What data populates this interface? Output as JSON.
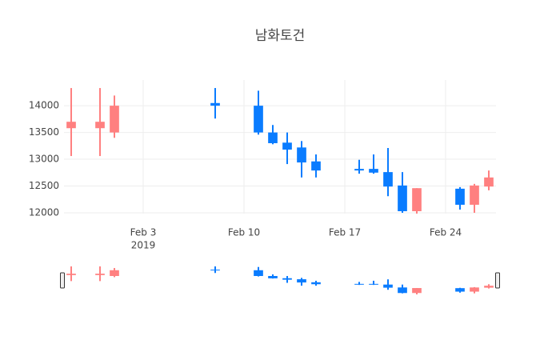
{
  "chart_data": {
    "type": "candlestick",
    "title": "남화토건",
    "x": [
      "2019-01-29",
      "2019-01-31",
      "2019-02-01",
      "2019-02-08",
      "2019-02-11",
      "2019-02-12",
      "2019-02-13",
      "2019-02-14",
      "2019-02-15",
      "2019-02-18",
      "2019-02-19",
      "2019-02-20",
      "2019-02-21",
      "2019-02-22",
      "2019-02-25",
      "2019-02-26",
      "2019-02-27"
    ],
    "open": [
      13580,
      13580,
      13500,
      14050,
      14000,
      13500,
      13310,
      13220,
      12960,
      12820,
      12820,
      12760,
      12510,
      12030,
      12450,
      12150,
      12490
    ],
    "high": [
      14330,
      14330,
      14190,
      14330,
      14280,
      13640,
      13500,
      13340,
      13090,
      12990,
      13090,
      13210,
      12760,
      12460,
      12480,
      12540,
      12790
    ],
    "low": [
      13060,
      13060,
      13400,
      13760,
      13460,
      13280,
      12910,
      12660,
      12660,
      12730,
      12730,
      12310,
      12000,
      11910,
      12060,
      12000,
      12420
    ],
    "close": [
      13700,
      13700,
      14000,
      14000,
      13500,
      13300,
      13180,
      12940,
      12790,
      12790,
      12750,
      12490,
      12030,
      12460,
      12150,
      12510,
      12660
    ],
    "increasing_color": "#ff8080",
    "decreasing_color": "#0a7cff",
    "xlim": [
      "2019-01-28T12:00",
      "2019-02-27T12:00"
    ],
    "xticks": [
      {
        "value": "2019-02-03",
        "label": "Feb 3"
      },
      {
        "value": "2019-02-10",
        "label": "Feb 10"
      },
      {
        "value": "2019-02-17",
        "label": "Feb 17"
      },
      {
        "value": "2019-02-24",
        "label": "Feb 24"
      }
    ],
    "xtick_year": "2019",
    "ylim": [
      11985,
      14480
    ],
    "yticks": [
      12000,
      12500,
      13000,
      13500,
      14000
    ],
    "grid": true,
    "rangeslider": true
  }
}
